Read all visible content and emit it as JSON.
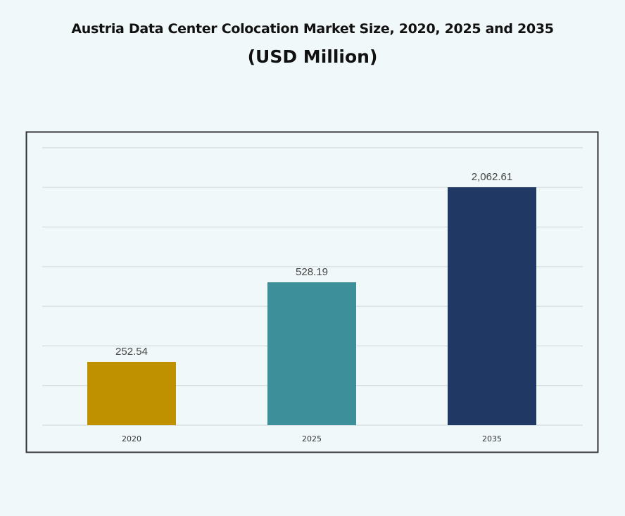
{
  "chart_data": {
    "type": "bar",
    "title": "Austria Data Center Colocation Market Size, 2020, 2025 and 2035",
    "subtitle": "(USD Million)",
    "categories": [
      "2020",
      "2025",
      "2035"
    ],
    "values": [
      252.54,
      528.19,
      2062.61
    ],
    "value_labels": [
      "252.54",
      "528.19",
      "2,062.61"
    ],
    "colors": [
      "#bf9000",
      "#3d9099",
      "#203864"
    ],
    "xlabel": "",
    "ylabel": "",
    "grid": true,
    "legend": "none"
  }
}
